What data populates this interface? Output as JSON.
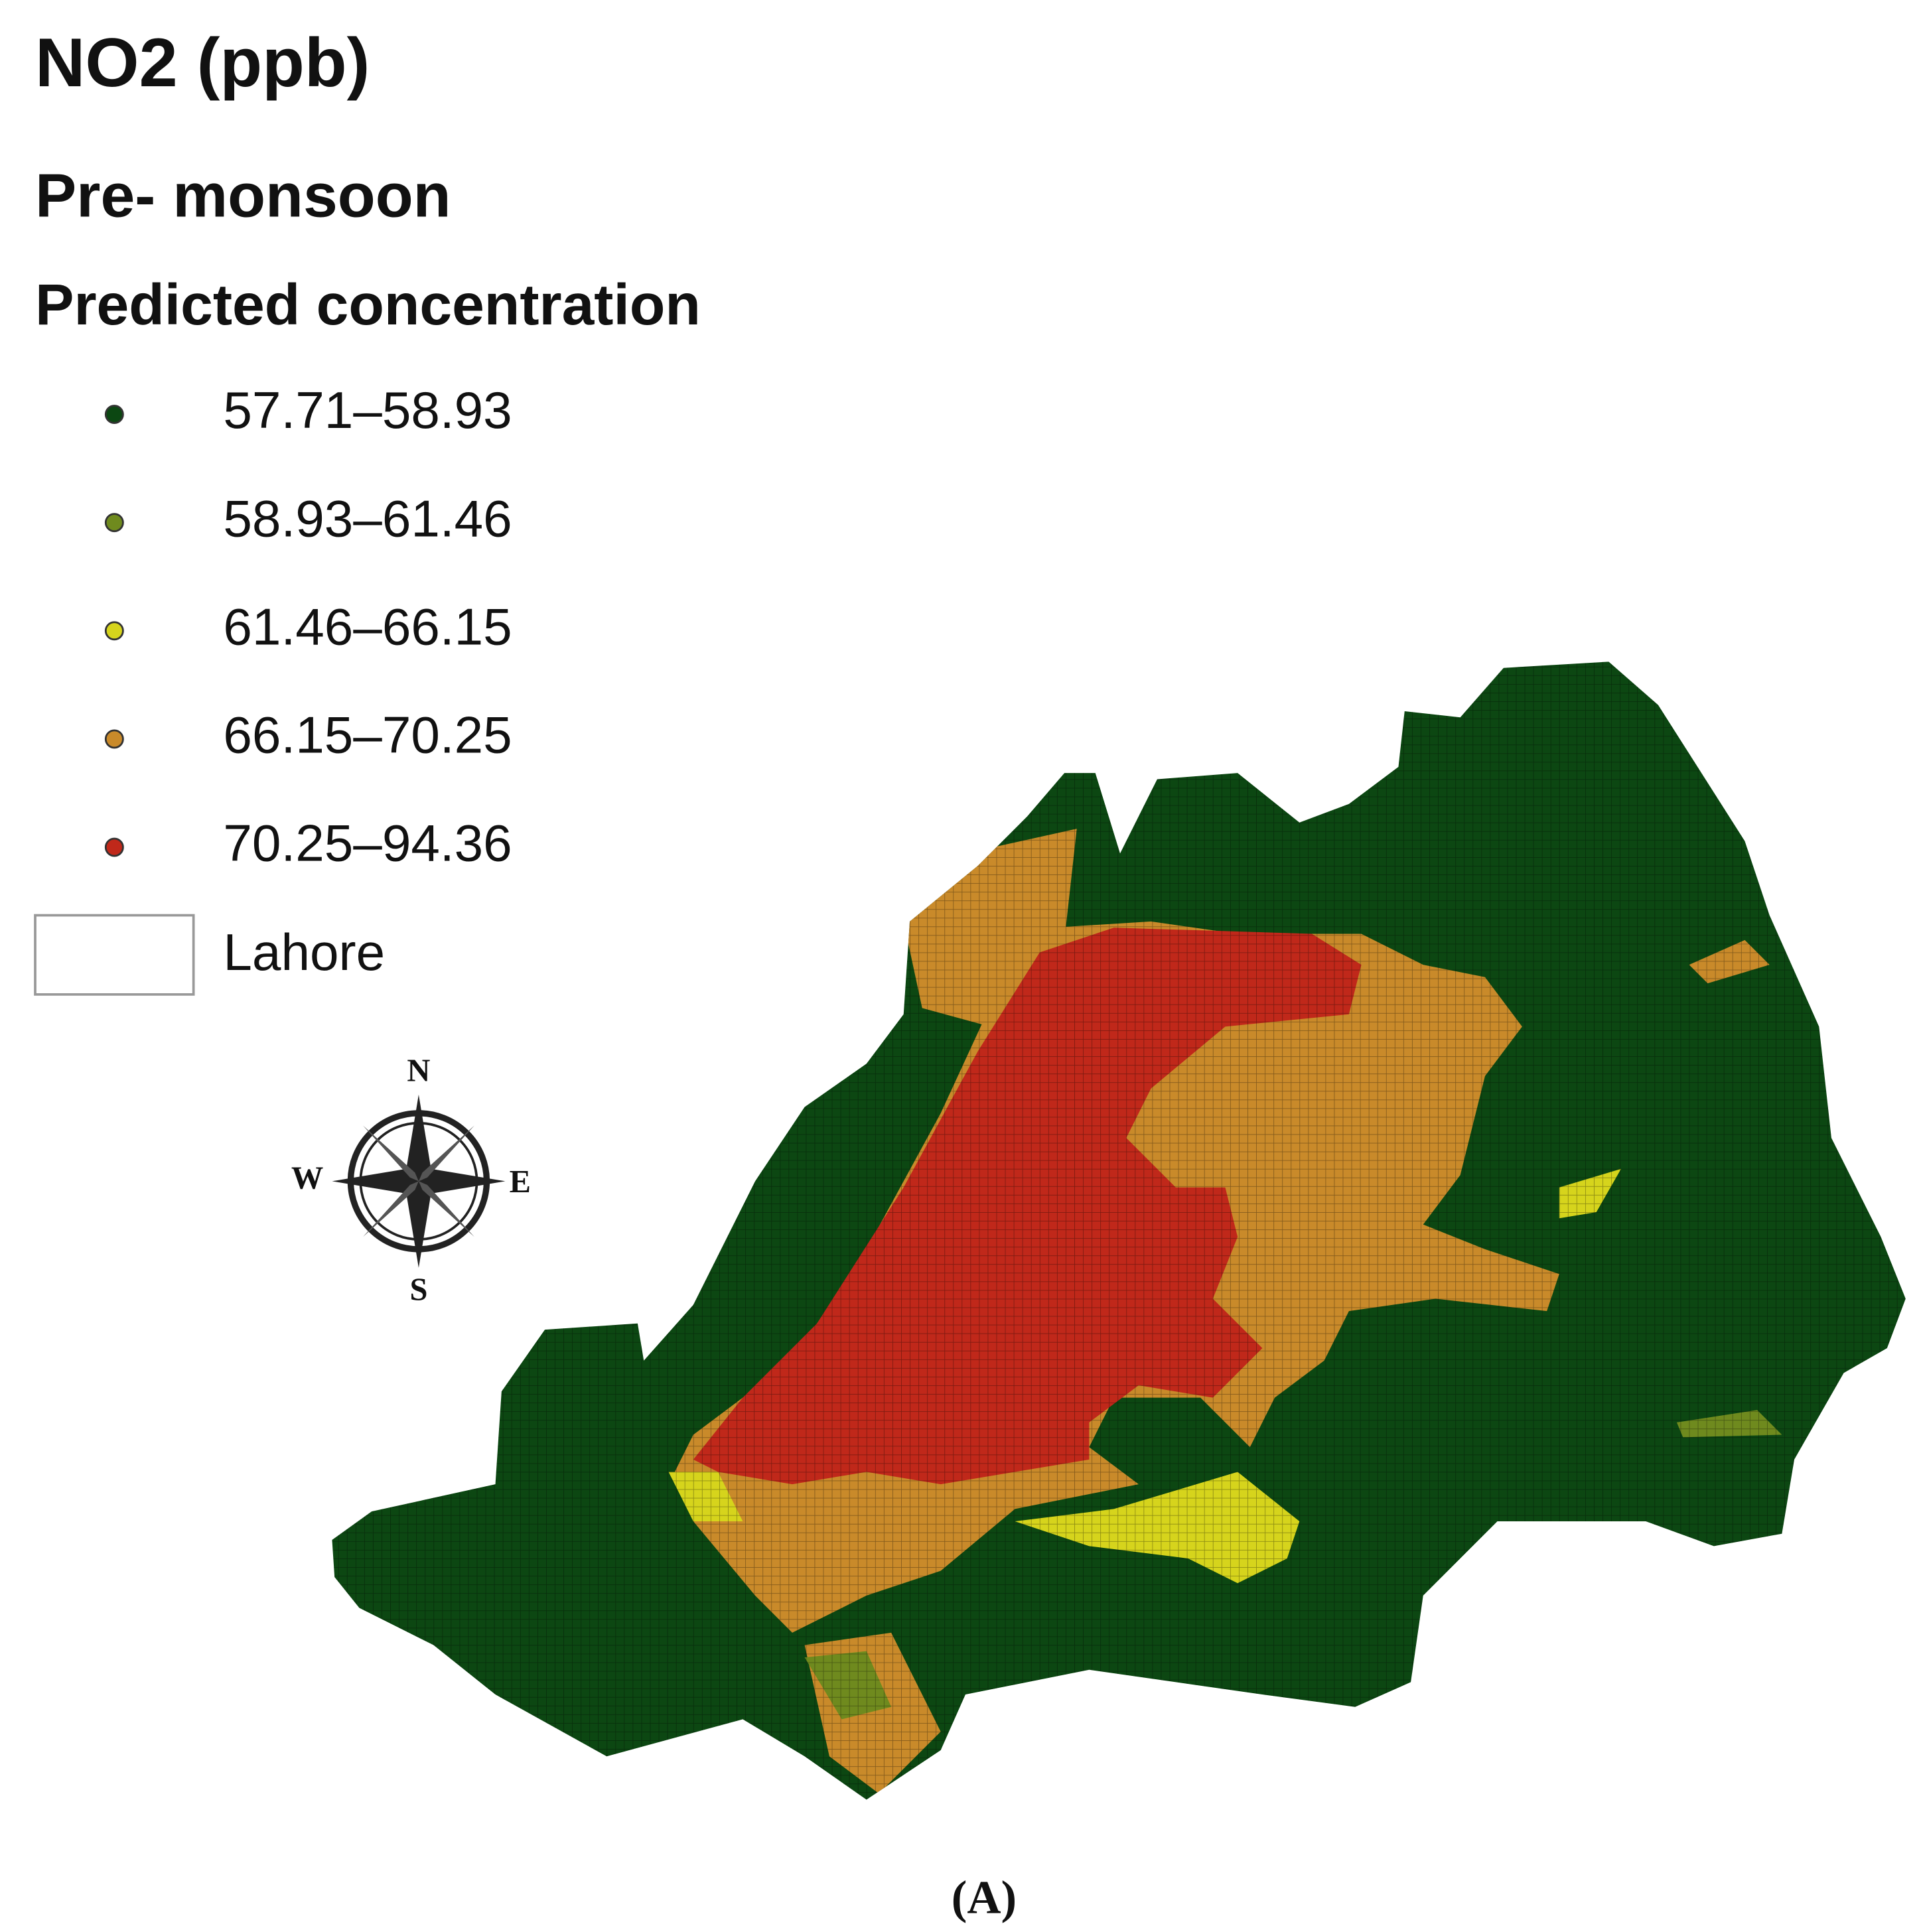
{
  "title": "NO2 (ppb)",
  "subtitle": "Pre- monsoon",
  "legend": {
    "title": "Predicted concentration",
    "items": [
      {
        "label": "57.71–58.93",
        "color": "#0c4712"
      },
      {
        "label": "58.93–61.46",
        "color": "#6f8a1e"
      },
      {
        "label": "61.46–66.15",
        "color": "#d6d41c"
      },
      {
        "label": "66.15–70.25",
        "color": "#c98a2a"
      },
      {
        "label": "70.25–94.36",
        "color": "#c0281a"
      }
    ],
    "boundary": "Lahore"
  },
  "compass": {
    "n": "N",
    "e": "E",
    "s": "S",
    "w": "W"
  },
  "caption": "(A)"
}
